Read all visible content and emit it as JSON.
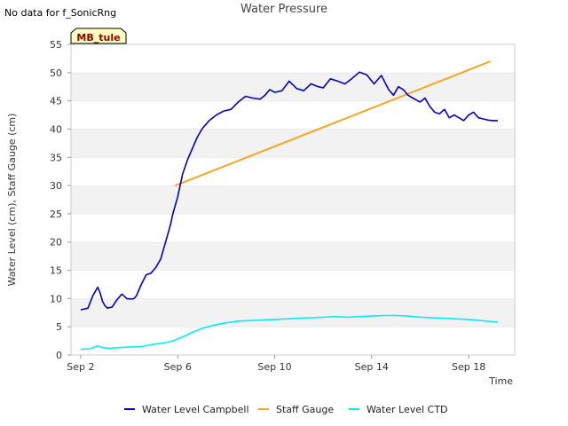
{
  "chart_data": {
    "type": "line",
    "title": "Water Pressure",
    "no_data_note": "No data for f_SonicRng",
    "badge": "MB_tule",
    "xlabel": "Time",
    "ylabel": "Water Level (cm), Staff Gauge (cm)",
    "xlim": [
      1.6,
      19.9
    ],
    "ylim": [
      0,
      55
    ],
    "x_ticks": [
      {
        "x": 2,
        "label": "Sep 2"
      },
      {
        "x": 6,
        "label": "Sep 6"
      },
      {
        "x": 10,
        "label": "Sep 10"
      },
      {
        "x": 14,
        "label": "Sep 14"
      },
      {
        "x": 18,
        "label": "Sep 18"
      }
    ],
    "y_ticks": [
      0,
      5,
      10,
      15,
      20,
      25,
      30,
      35,
      40,
      45,
      50,
      55
    ],
    "y_tick_labels": [
      "0",
      "5",
      "10",
      "15",
      "20",
      "25",
      "30",
      "35",
      "40",
      "45",
      "50",
      "55"
    ],
    "grid": "alternating horizontal bands",
    "legend_position": "bottom",
    "series": [
      {
        "name": "Water Level Campbell",
        "color": "#0000cc",
        "x": [
          2.0,
          2.3,
          2.5,
          2.7,
          2.8,
          2.9,
          3.0,
          3.1,
          3.3,
          3.5,
          3.7,
          3.9,
          4.1,
          4.2,
          4.3,
          4.5,
          4.7,
          4.9,
          5.1,
          5.3,
          5.5,
          5.7,
          5.8,
          6.0,
          6.2,
          6.4,
          6.6,
          6.8,
          7.0,
          7.3,
          7.6,
          7.9,
          8.2,
          8.5,
          8.8,
          9.1,
          9.4,
          9.6,
          9.8,
          10.0,
          10.3,
          10.6,
          10.9,
          11.2,
          11.5,
          11.8,
          12.0,
          12.3,
          12.6,
          12.9,
          13.2,
          13.5,
          13.8,
          14.1,
          14.4,
          14.7,
          14.9,
          15.1,
          15.3,
          15.5,
          15.7,
          15.9,
          16.0,
          16.2,
          16.4,
          16.6,
          16.8,
          17.0,
          17.2,
          17.4,
          17.6,
          17.8,
          18.0,
          18.2,
          18.4,
          18.6,
          18.8,
          19.0,
          19.2
        ],
        "values": [
          8.0,
          8.3,
          10.5,
          12.0,
          11.0,
          9.5,
          8.7,
          8.3,
          8.5,
          9.8,
          10.8,
          10.0,
          9.9,
          10.0,
          10.5,
          12.5,
          14.2,
          14.5,
          15.5,
          17.0,
          20.0,
          23.0,
          25.0,
          28.0,
          32.0,
          34.5,
          36.5,
          38.5,
          40.0,
          41.5,
          42.5,
          43.2,
          43.5,
          44.8,
          45.8,
          45.5,
          45.3,
          46.0,
          47.0,
          46.5,
          46.8,
          48.5,
          47.2,
          46.8,
          48.0,
          47.5,
          47.3,
          48.9,
          48.5,
          48.0,
          49.0,
          50.1,
          49.6,
          48.0,
          49.5,
          47.0,
          46.0,
          47.5,
          47.0,
          46.0,
          45.5,
          45.0,
          44.8,
          45.5,
          44.0,
          43.0,
          42.7,
          43.5,
          42.0,
          42.5,
          42.0,
          41.5,
          42.5,
          43.0,
          42.0,
          41.8,
          41.6,
          41.5,
          41.5
        ]
      },
      {
        "name": "Staff Gauge",
        "color": "#f5a623",
        "x": [
          5.9,
          18.9
        ],
        "values": [
          30.0,
          52.0
        ]
      },
      {
        "name": "Water Level CTD",
        "color": "#00eeff",
        "x": [
          2.0,
          2.4,
          2.7,
          2.9,
          3.2,
          3.6,
          4.0,
          4.5,
          5.0,
          5.4,
          5.8,
          6.2,
          6.6,
          7.0,
          7.5,
          8.0,
          8.5,
          9.0,
          9.5,
          10.0,
          10.5,
          11.0,
          11.5,
          12.0,
          12.5,
          13.0,
          13.5,
          14.0,
          14.5,
          15.0,
          15.5,
          16.0,
          16.5,
          17.0,
          17.5,
          18.0,
          18.5,
          19.0,
          19.2
        ],
        "values": [
          1.0,
          1.1,
          1.6,
          1.3,
          1.2,
          1.3,
          1.4,
          1.5,
          1.9,
          2.1,
          2.5,
          3.2,
          4.0,
          4.7,
          5.3,
          5.7,
          6.0,
          6.1,
          6.2,
          6.3,
          6.4,
          6.5,
          6.6,
          6.7,
          6.8,
          6.7,
          6.8,
          6.9,
          7.0,
          7.0,
          6.9,
          6.7,
          6.6,
          6.5,
          6.4,
          6.3,
          6.1,
          5.9,
          5.8
        ]
      }
    ]
  }
}
